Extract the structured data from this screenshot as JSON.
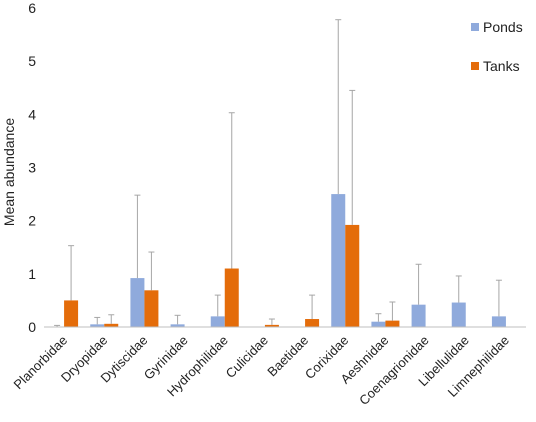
{
  "chart_data": {
    "type": "bar",
    "title": "",
    "xlabel": "",
    "ylabel": "Mean abundance",
    "ylim": [
      0,
      6
    ],
    "yticks": [
      0,
      1,
      2,
      3,
      4,
      5,
      6
    ],
    "grid": false,
    "legend": "top-right",
    "categories": [
      "Planorbidae",
      "Dryopidae",
      "Dytiscidae",
      "Gyrinidae",
      "Hydrophilidae",
      "Culicidae",
      "Baetidae",
      "Corixidae",
      "Aeshnidae",
      "Coenagrionidae",
      "Libellulidae",
      "Limnephilidae"
    ],
    "series": [
      {
        "name": "Ponds",
        "color": "#8faadc",
        "values": [
          0.0,
          0.05,
          0.92,
          0.05,
          0.2,
          0.0,
          0.0,
          2.5,
          0.1,
          0.42,
          0.46,
          0.2
        ],
        "error_upper": [
          0.03,
          0.18,
          2.48,
          0.22,
          0.6,
          0.0,
          0.0,
          5.78,
          0.25,
          1.18,
          0.96,
          0.88
        ]
      },
      {
        "name": "Tanks",
        "color": "#e46c0a",
        "values": [
          0.5,
          0.06,
          0.69,
          0.0,
          1.1,
          0.04,
          0.15,
          1.92,
          0.12,
          0.0,
          0.0,
          0.0
        ],
        "error_upper": [
          1.53,
          0.23,
          1.41,
          0.0,
          4.03,
          0.15,
          0.6,
          4.45,
          0.47,
          0.0,
          0.0,
          0.0
        ]
      }
    ]
  }
}
